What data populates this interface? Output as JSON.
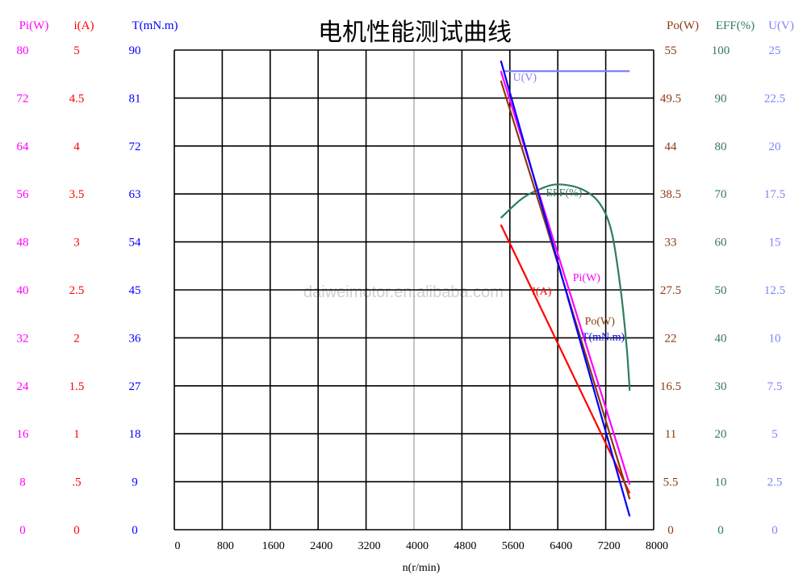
{
  "chart_data": {
    "type": "line",
    "title": "电机性能测试曲线",
    "xlabel": "n(r/min)",
    "xlim": [
      0,
      8000
    ],
    "x_ticks": [
      "0",
      "800",
      "1600",
      "2400",
      "3200",
      "4000",
      "4800",
      "5600",
      "6400",
      "7200",
      "8000"
    ],
    "grid": true,
    "watermark": "daiweimotor.en.alibaba.com",
    "axes": [
      {
        "id": "pi",
        "label": "Pi(W)",
        "side": "left",
        "color": "#ff00ff",
        "range": [
          0,
          80
        ],
        "ticks": [
          "0",
          "8",
          "16",
          "24",
          "32",
          "40",
          "48",
          "56",
          "64",
          "72",
          "80"
        ]
      },
      {
        "id": "i",
        "label": "i(A)",
        "side": "left",
        "color": "#ff0000",
        "range": [
          0,
          5
        ],
        "ticks": [
          "0",
          ".5",
          "1",
          "1.5",
          "2",
          "2.5",
          "3",
          "3.5",
          "4",
          "4.5",
          "5"
        ]
      },
      {
        "id": "t",
        "label": "T(mN.m)",
        "side": "left",
        "color": "#0000ff",
        "range": [
          0,
          90
        ],
        "ticks": [
          "0",
          "9",
          "18",
          "27",
          "36",
          "45",
          "54",
          "63",
          "72",
          "81",
          "90"
        ]
      },
      {
        "id": "po",
        "label": "Po(W)",
        "side": "right",
        "color": "#8b3a0f",
        "range": [
          0,
          55
        ],
        "ticks": [
          "0",
          "5.5",
          "11",
          "16.5",
          "22",
          "27.5",
          "33",
          "38.5",
          "44",
          "49.5",
          "55"
        ]
      },
      {
        "id": "eff",
        "label": "EFF(%)",
        "side": "right",
        "color": "#2e7d5b",
        "range": [
          0,
          100
        ],
        "ticks": [
          "0",
          "10",
          "20",
          "30",
          "40",
          "50",
          "60",
          "70",
          "80",
          "90",
          "100"
        ]
      },
      {
        "id": "u",
        "label": "U(V)",
        "side": "right",
        "color": "#8080ff",
        "range": [
          0,
          25
        ],
        "ticks": [
          "0",
          "2.5",
          "5",
          "7.5",
          "10",
          "12.5",
          "15",
          "17.5",
          "20",
          "22.5",
          "25"
        ]
      }
    ],
    "series": [
      {
        "name": "U(V)",
        "axis": "u",
        "color": "#8080ff",
        "points": [
          [
            5500,
            23.9
          ],
          [
            7600,
            23.9
          ]
        ]
      },
      {
        "name": "EFF(%)",
        "axis": "eff",
        "color": "#2e7d5b",
        "points": [
          [
            5450,
            65
          ],
          [
            5800,
            69
          ],
          [
            6100,
            71
          ],
          [
            6400,
            72
          ],
          [
            6800,
            71
          ],
          [
            7100,
            68
          ],
          [
            7300,
            62
          ],
          [
            7450,
            50
          ],
          [
            7550,
            38
          ],
          [
            7600,
            29
          ]
        ]
      },
      {
        "name": "Pi(W)",
        "axis": "pi",
        "color": "#ff00ff",
        "points": [
          [
            5450,
            76.5
          ],
          [
            7600,
            7.5
          ]
        ]
      },
      {
        "name": "I(A)",
        "axis": "i",
        "color": "#ff0000",
        "points": [
          [
            5450,
            3.18
          ],
          [
            7600,
            0.38
          ]
        ]
      },
      {
        "name": "Po(W)",
        "axis": "po",
        "color": "#8b3a0f",
        "points": [
          [
            5450,
            51.5
          ],
          [
            6200,
            35
          ],
          [
            7600,
            3.5
          ]
        ]
      },
      {
        "name": "T(mN.m)",
        "axis": "t",
        "color": "#0000ff",
        "points": [
          [
            5450,
            88
          ],
          [
            7600,
            2.5
          ]
        ]
      }
    ],
    "curve_labels": [
      {
        "text": "U(V)",
        "color": "#8080ff",
        "x": 5650,
        "axis": "u",
        "y": 23.4
      },
      {
        "text": "EFF(%)",
        "color": "#2e7d5b",
        "x": 6200,
        "axis": "eff",
        "y": 69.5
      },
      {
        "text": "Pi(W)",
        "color": "#ff00ff",
        "x": 6650,
        "axis": "pi",
        "y": 41.5
      },
      {
        "text": "I(A)",
        "color": "#ff0000",
        "x": 5970,
        "axis": "i",
        "y": 2.45
      },
      {
        "text": "Po(W)",
        "color": "#8b3a0f",
        "x": 6850,
        "axis": "po",
        "y": 23.5
      },
      {
        "text": "T(mN.m)",
        "color": "#0000ff",
        "x": 6800,
        "axis": "t",
        "y": 35.5
      }
    ]
  }
}
